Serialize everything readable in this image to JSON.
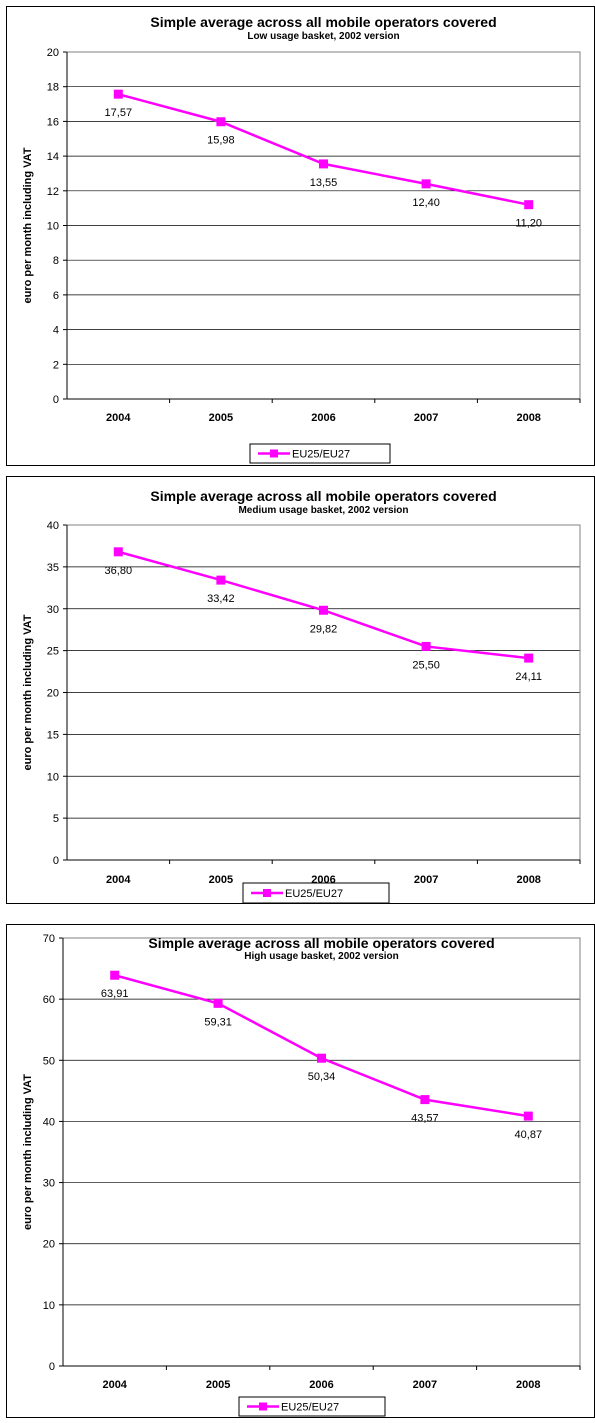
{
  "series_color": "#FF00FF",
  "chart_data": [
    {
      "type": "line",
      "title": "Simple average across all mobile operators covered",
      "subtitle": "Low usage basket, 2002 version",
      "ylabel": "euro per month including VAT",
      "xlabel": "",
      "categories": [
        "2004",
        "2005",
        "2006",
        "2007",
        "2008"
      ],
      "ylim": [
        0,
        20
      ],
      "yticks": [
        0,
        2,
        4,
        6,
        8,
        10,
        12,
        14,
        16,
        18,
        20
      ],
      "grid": true,
      "legend_position": "bottom",
      "series": [
        {
          "name": "EU25/EU27",
          "values": [
            17.57,
            15.98,
            13.55,
            12.4,
            11.2
          ],
          "labels": [
            "17,57",
            "15,98",
            "13,55",
            "12,40",
            "11,20"
          ]
        }
      ]
    },
    {
      "type": "line",
      "title": "Simple average across all mobile operators covered",
      "subtitle": "Medium usage basket, 2002 version",
      "ylabel": "euro per month including VAT",
      "xlabel": "",
      "categories": [
        "2004",
        "2005",
        "2006",
        "2007",
        "2008"
      ],
      "ylim": [
        0,
        40
      ],
      "yticks": [
        0,
        5,
        10,
        15,
        20,
        25,
        30,
        35,
        40
      ],
      "grid": true,
      "legend_position": "bottom",
      "series": [
        {
          "name": "EU25/EU27",
          "values": [
            36.8,
            33.42,
            29.82,
            25.5,
            24.11
          ],
          "labels": [
            "36,80",
            "33,42",
            "29,82",
            "25,50",
            "24,11"
          ]
        }
      ]
    },
    {
      "type": "line",
      "title": "Simple average across all mobile operators covered",
      "subtitle": "High usage basket, 2002 version",
      "ylabel": "euro per month including VAT",
      "xlabel": "",
      "categories": [
        "2004",
        "2005",
        "2006",
        "2007",
        "2008"
      ],
      "ylim": [
        0,
        70
      ],
      "yticks": [
        0,
        10,
        20,
        30,
        40,
        50,
        60,
        70
      ],
      "grid": true,
      "legend_position": "bottom",
      "series": [
        {
          "name": "EU25/EU27",
          "values": [
            63.91,
            59.31,
            50.34,
            43.57,
            40.87
          ],
          "labels": [
            "63,91",
            "59,31",
            "50,34",
            "43,57",
            "40,87"
          ]
        }
      ]
    }
  ]
}
